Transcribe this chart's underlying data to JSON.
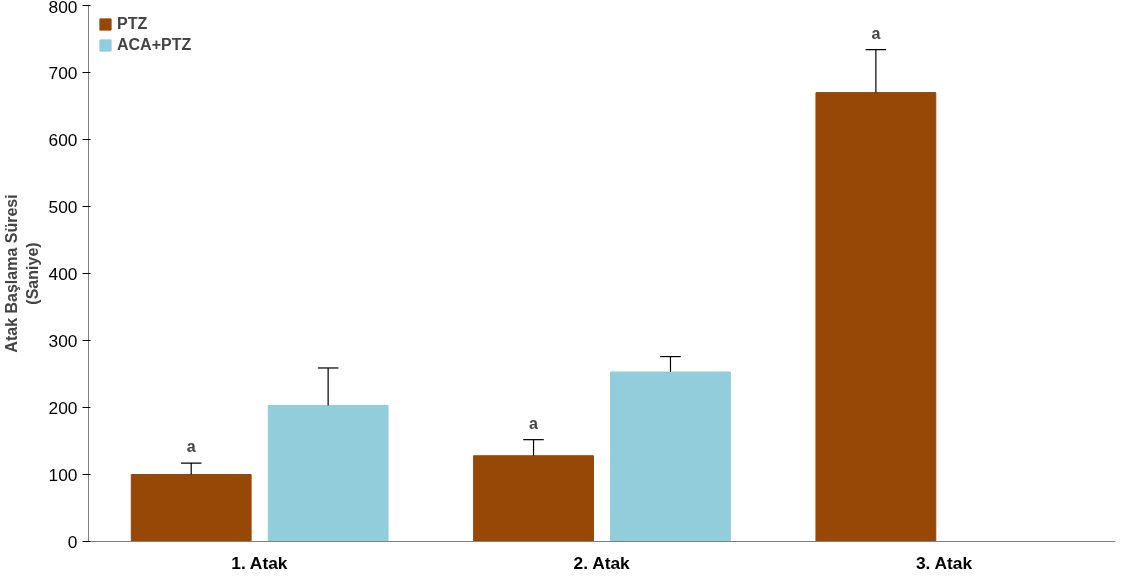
{
  "chart_data": {
    "type": "bar",
    "ylabel": "Atak Başlama Süresi\n(Saniye)",
    "categories": [
      "1. Atak",
      "2. Atak",
      "3. Atak"
    ],
    "series": [
      {
        "name": "PTZ",
        "color": "#974706",
        "values": [
          100,
          128,
          670
        ],
        "errors": [
          [
            100,
            117
          ],
          [
            128,
            152
          ],
          [
            670,
            734
          ]
        ]
      },
      {
        "name": "ACA+PTZ",
        "color": "#92cddc",
        "values": [
          203,
          253,
          null
        ],
        "errors": [
          [
            203,
            259
          ],
          [
            253,
            276
          ],
          null
        ]
      }
    ],
    "annotations": [
      "a",
      "a",
      "a"
    ],
    "ylim": [
      0,
      800
    ],
    "yticks": [
      0,
      100,
      200,
      300,
      400,
      500,
      600,
      700,
      800
    ],
    "grid": false,
    "legend": "top left"
  }
}
